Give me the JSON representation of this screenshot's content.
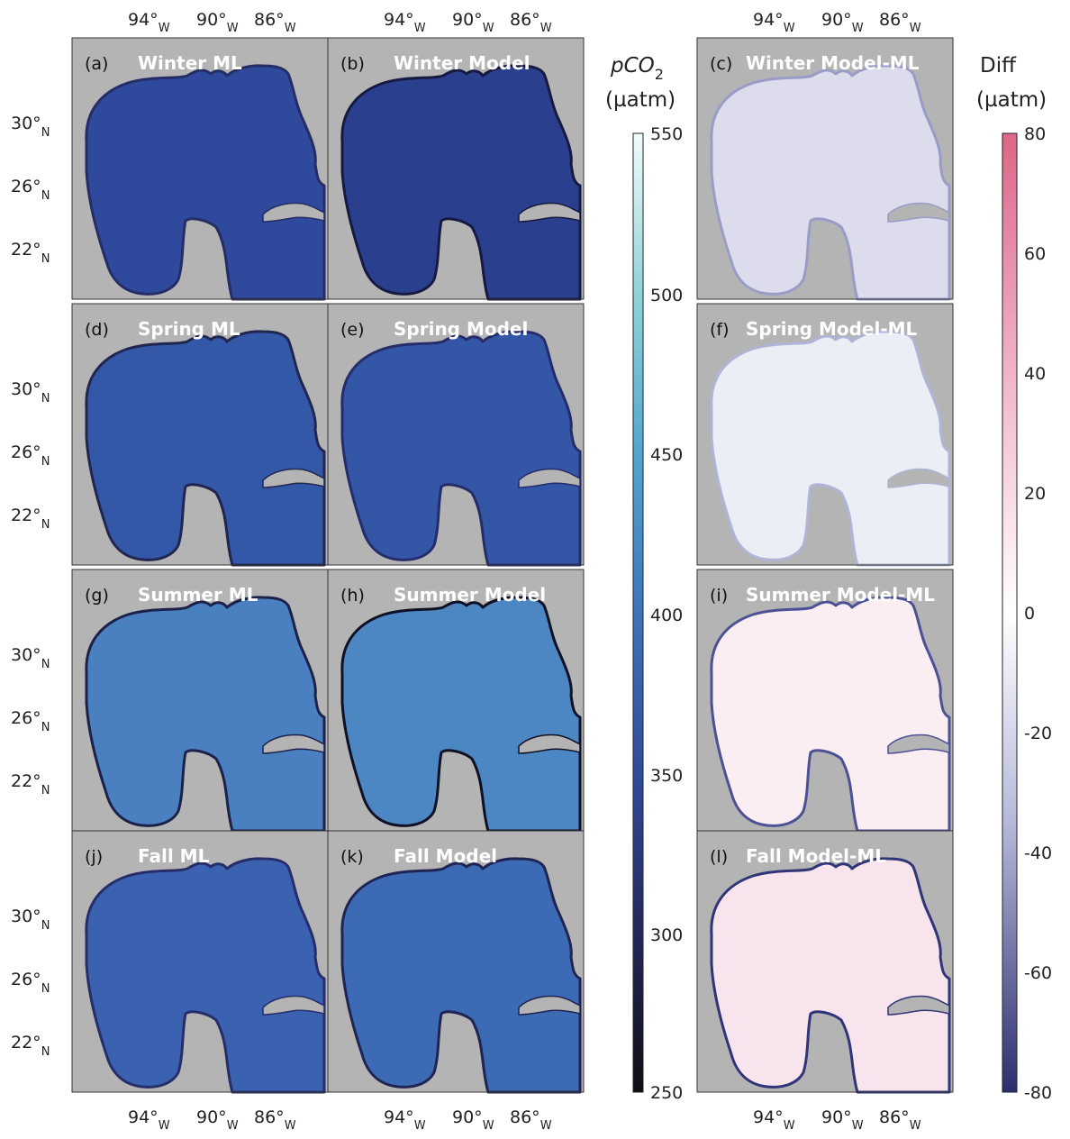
{
  "figure": {
    "background_color": "#aaaaaa",
    "land_color": "#b4b4b4",
    "panels": [
      {
        "tag": "(a)",
        "title": "Winter ML",
        "kind": "pco2",
        "fill": "#2f4a9c",
        "coast": "#252c66"
      },
      {
        "tag": "(b)",
        "title": "Winter Model",
        "kind": "pco2",
        "fill": "#2a3f8e",
        "coast": "#161a40"
      },
      {
        "tag": "(c)",
        "title": "Winter Model-ML",
        "kind": "diff",
        "fill": "#dcdcec",
        "coast": "#9a9cc8"
      },
      {
        "tag": "(d)",
        "title": "Spring ML",
        "kind": "pco2",
        "fill": "#3458a8",
        "coast": "#20264f"
      },
      {
        "tag": "(e)",
        "title": "Spring Model",
        "kind": "pco2",
        "fill": "#3356a6",
        "coast": "#262c6a"
      },
      {
        "tag": "(f)",
        "title": "Spring Model-ML",
        "kind": "diff",
        "fill": "#eceef6",
        "coast": "#b0b4d6"
      },
      {
        "tag": "(g)",
        "title": "Summer ML",
        "kind": "pco2",
        "fill": "#4a80c0",
        "coast": "#1c214a"
      },
      {
        "tag": "(h)",
        "title": "Summer Model",
        "kind": "pco2",
        "fill": "#4d87c3",
        "coast": "#0e1024"
      },
      {
        "tag": "(i)",
        "title": "Summer Model-ML",
        "kind": "diff",
        "fill": "#fbeef2",
        "coast": "#4c5196"
      },
      {
        "tag": "(j)",
        "title": "Fall ML",
        "kind": "pco2",
        "fill": "#3a62b0",
        "coast": "#272d6a"
      },
      {
        "tag": "(k)",
        "title": "Fall Model",
        "kind": "pco2",
        "fill": "#3d6ab4",
        "coast": "#1f2452"
      },
      {
        "tag": "(l)",
        "title": "Fall Model-ML",
        "kind": "diff",
        "fill": "#f8e4ec",
        "coast": "#2f3578"
      }
    ]
  },
  "axes": {
    "lon_ticks": [
      {
        "value": "94°",
        "hemi": "W"
      },
      {
        "value": "90°",
        "hemi": "W"
      },
      {
        "value": "86°",
        "hemi": "W"
      }
    ],
    "lat_ticks": [
      {
        "value": "30°",
        "hemi": "N"
      },
      {
        "value": "26°",
        "hemi": "N"
      },
      {
        "value": "22°",
        "hemi": "N"
      }
    ]
  },
  "colorbar_pco2": {
    "title_main": "pCO",
    "title_sub": "2",
    "unit": "(µatm)",
    "ticks": [
      "550",
      "500",
      "450",
      "400",
      "350",
      "300",
      "250"
    ],
    "colors": [
      "#f2fbfb",
      "#8fd3d8",
      "#52a6cf",
      "#3d74bb",
      "#314a9c",
      "#24285c",
      "#0e0e12"
    ]
  },
  "colorbar_diff": {
    "title": "Diff",
    "unit": "(µatm)",
    "ticks": [
      "80",
      "60",
      "40",
      "20",
      "0",
      "-20",
      "-40",
      "-60",
      "-80"
    ],
    "colors": [
      "#dd6688",
      "#f4c4d4",
      "#ffffff",
      "#b6b8da",
      "#2c2f6e"
    ]
  }
}
